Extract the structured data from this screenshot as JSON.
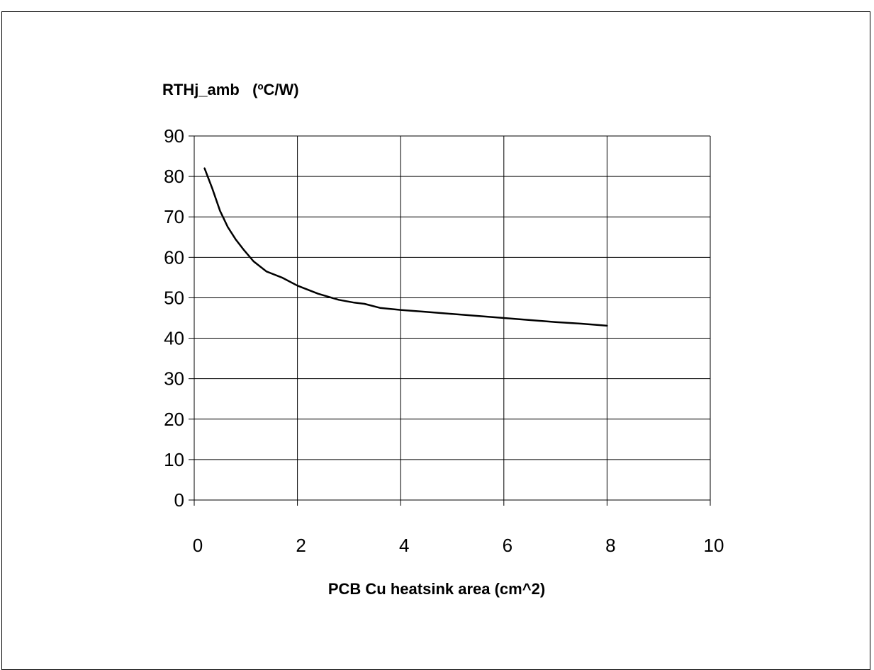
{
  "chart_data": {
    "type": "line",
    "title": "",
    "ylabel": "RTHj_amb   (ºC/W)",
    "xlabel": "PCB Cu heatsink area (cm^2)",
    "xlim": [
      0,
      10
    ],
    "ylim": [
      0,
      90
    ],
    "x_ticks": [
      "0",
      "2",
      "4",
      "6",
      "8",
      "10"
    ],
    "y_ticks": [
      "0",
      "10",
      "20",
      "30",
      "40",
      "50",
      "60",
      "70",
      "80",
      "90"
    ],
    "grid": true,
    "line_color": "#000000",
    "series": [
      {
        "x": [
          0.2,
          0.35,
          0.5,
          0.65,
          0.8,
          0.95,
          1.15,
          1.4,
          1.7,
          2.0,
          2.4,
          2.8,
          3.1,
          3.3,
          3.6,
          4.0,
          4.5,
          5.0,
          5.5,
          6.0,
          6.5,
          7.0,
          7.5,
          8.0
        ],
        "y": [
          82,
          77,
          71.5,
          67.5,
          64.5,
          62,
          59,
          56.5,
          55,
          53,
          51,
          49.5,
          48.8,
          48.5,
          47.5,
          47,
          46.5,
          46,
          45.5,
          45,
          44.5,
          44,
          43.6,
          43.1
        ]
      }
    ]
  }
}
